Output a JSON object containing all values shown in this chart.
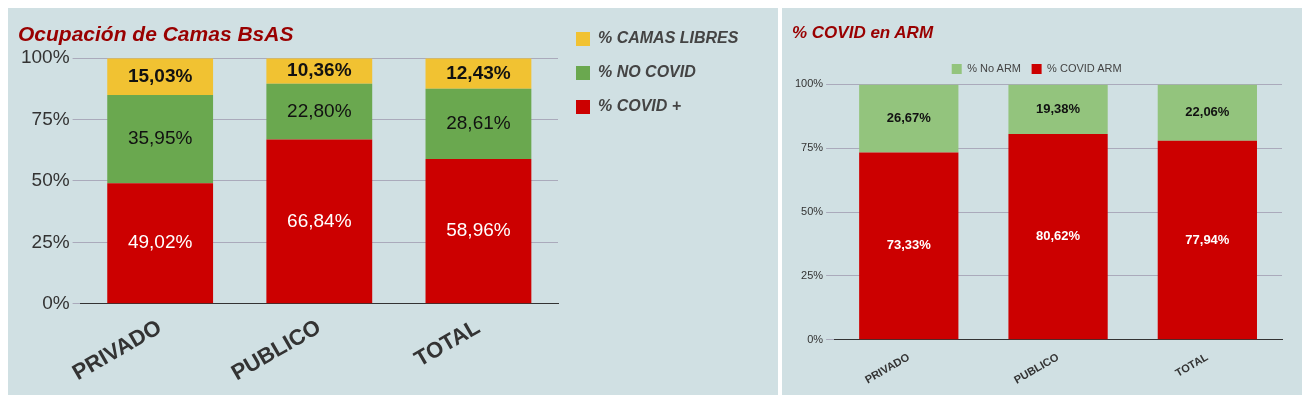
{
  "chart_data": [
    {
      "type": "bar",
      "title": "Ocupación de Camas BsAS",
      "categories": [
        "PRIVADO",
        "PUBLICO",
        "TOTAL"
      ],
      "stacked": true,
      "ylim": [
        0,
        100
      ],
      "yticks": [
        {
          "value": 0,
          "label": "0%"
        },
        {
          "value": 25,
          "label": "25%"
        },
        {
          "value": 50,
          "label": "50%"
        },
        {
          "value": 75,
          "label": "75%"
        },
        {
          "value": 100,
          "label": "100%"
        }
      ],
      "grid": "y",
      "legend": "right",
      "series": [
        {
          "name": "% COVID +",
          "color": "#cc0000",
          "values": [
            49.02,
            66.84,
            58.96
          ],
          "value_labels": [
            "49,02%",
            "66,84%",
            "58,96%"
          ]
        },
        {
          "name": "% NO COVID",
          "color": "#6aa84f",
          "values": [
            35.95,
            22.8,
            28.61
          ],
          "value_labels": [
            "35,95%",
            "22,80%",
            "28,61%"
          ]
        },
        {
          "name": "% CAMAS LIBRES",
          "color": "#f1c232",
          "values": [
            15.03,
            10.36,
            12.43
          ],
          "value_labels": [
            "15,03%",
            "10,36%",
            "12,43%"
          ]
        }
      ]
    },
    {
      "type": "bar",
      "title": "% COVID en ARM",
      "categories": [
        "PRIVADO",
        "PUBLICO",
        "TOTAL"
      ],
      "stacked": true,
      "ylim": [
        0,
        100
      ],
      "yticks": [
        {
          "value": 0,
          "label": "0%"
        },
        {
          "value": 25,
          "label": "25%"
        },
        {
          "value": 50,
          "label": "50%"
        },
        {
          "value": 75,
          "label": "75%"
        },
        {
          "value": 100,
          "label": "100%"
        }
      ],
      "grid": "y",
      "legend": "top",
      "series": [
        {
          "name": "% COVID ARM",
          "color": "#cc0000",
          "values": [
            73.33,
            80.62,
            77.94
          ],
          "value_labels": [
            "73,33%",
            "80,62%",
            "77,94%"
          ]
        },
        {
          "name": "% No ARM",
          "color": "#93c47d",
          "values": [
            26.67,
            19.38,
            22.06
          ],
          "value_labels": [
            "26,67%",
            "19,38%",
            "22,06%"
          ]
        }
      ]
    }
  ]
}
